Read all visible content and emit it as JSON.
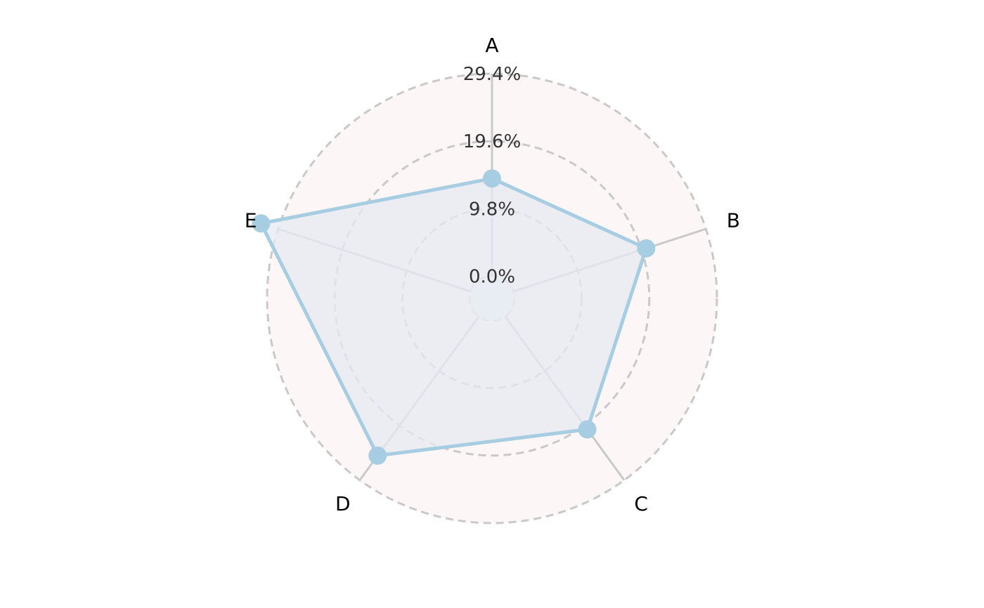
{
  "chart_data": {
    "type": "radar",
    "categories": [
      "A",
      "B",
      "C",
      "D",
      "E"
    ],
    "series": [
      {
        "values": [
          14.2,
          20.3,
          20.3,
          25.0,
          32.0
        ],
        "color": "#a6cde2"
      }
    ],
    "r_ticks": [
      "0.0%",
      "9.8%",
      "19.6%",
      "29.4%"
    ],
    "r_tick_values": [
      0.0,
      9.8,
      19.6,
      29.4
    ],
    "r_range": [
      -3.2,
      29.4
    ],
    "background_fill": "#fdf6f6",
    "grid": true,
    "grid_style": "dashed",
    "grid_color": "#c9c9c9",
    "spoke_color": "#c9c9c9",
    "fill_color": "#e6eaf2"
  }
}
